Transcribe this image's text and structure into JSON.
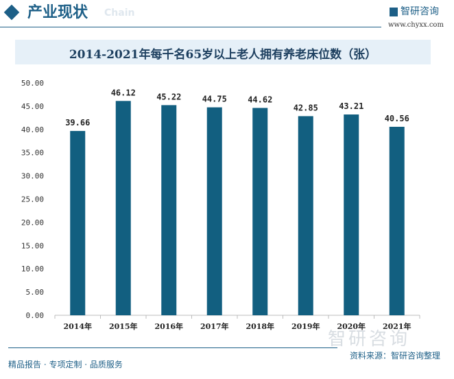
{
  "header": {
    "title": "产业现状",
    "subtitle": "Chain",
    "logo": "智研咨询",
    "url": "www.chyxx.com"
  },
  "footer": {
    "left": "精品报告 · 专项定制 · 品质服务",
    "source": "资料来源：智研咨询整理",
    "watermark": "智研咨询"
  },
  "chart_data": {
    "type": "bar",
    "title": "2014-2021年每千名65岁以上老人拥有养老床位数（张）",
    "categories": [
      "2014年",
      "2015年",
      "2016年",
      "2017年",
      "2018年",
      "2019年",
      "2020年",
      "2021年"
    ],
    "values": [
      39.66,
      46.12,
      45.22,
      44.75,
      44.62,
      42.85,
      43.21,
      40.56
    ],
    "ylim": [
      0,
      50
    ],
    "yticks": [
      "0.00",
      "5.00",
      "10.00",
      "15.00",
      "20.00",
      "25.00",
      "30.00",
      "35.00",
      "40.00",
      "45.00",
      "50.00"
    ],
    "grid": false,
    "bar_color": "#125f80"
  }
}
